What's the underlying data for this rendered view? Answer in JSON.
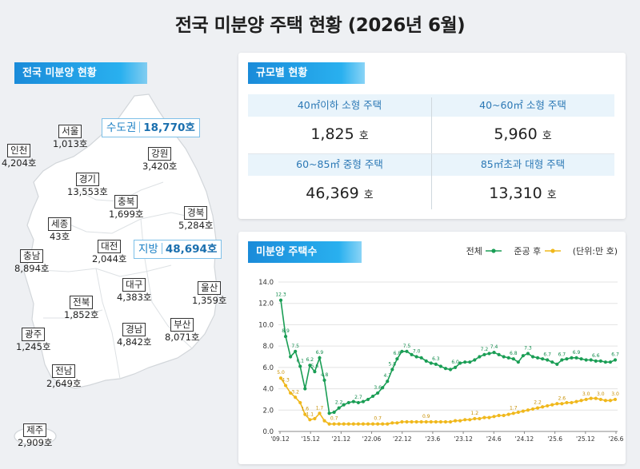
{
  "title": "전국 미분양 주택 현황  (2026년 6월)",
  "map": {
    "tag": "전국 미분양 현황",
    "capital": {
      "label": "수도권",
      "value": "18,770호"
    },
    "local": {
      "label": "지방",
      "value": "48,694호"
    },
    "regions": [
      {
        "name": "서울",
        "value": "1,013호"
      },
      {
        "name": "인천",
        "value": "4,204호"
      },
      {
        "name": "경기",
        "value": "13,553호"
      },
      {
        "name": "강원",
        "value": "3,420호"
      },
      {
        "name": "충북",
        "value": "1,699호"
      },
      {
        "name": "경북",
        "value": "5,284호"
      },
      {
        "name": "세종",
        "value": "43호"
      },
      {
        "name": "충남",
        "value": "8,894호"
      },
      {
        "name": "대전",
        "value": "2,044호"
      },
      {
        "name": "대구",
        "value": "4,383호"
      },
      {
        "name": "울산",
        "value": "1,359호"
      },
      {
        "name": "전북",
        "value": "1,852호"
      },
      {
        "name": "광주",
        "value": "1,245호"
      },
      {
        "name": "경남",
        "value": "4,842호"
      },
      {
        "name": "부산",
        "value": "8,071호"
      },
      {
        "name": "전남",
        "value": "2,649호"
      },
      {
        "name": "제주",
        "value": "2,909호"
      }
    ]
  },
  "scale": {
    "tag": "규모별 현황",
    "unit": "호",
    "cells": [
      {
        "label": "40㎡이하 소형 주택",
        "value": "1,825"
      },
      {
        "label": "40~60㎡ 소형 주택",
        "value": "5,960"
      },
      {
        "label": "60~85㎡ 중형 주택",
        "value": "46,369"
      },
      {
        "label": "85㎡초과 대형 주택",
        "value": "13,310"
      }
    ]
  },
  "chart": {
    "tag": "미분양 주택수",
    "legend_total": "전체",
    "legend_completed": "준공 후",
    "unit_note": "(단위:만 호)",
    "colors": {
      "total": "#1a9e55",
      "completed": "#f0b81c"
    }
  },
  "chart_data": {
    "type": "line",
    "title": "미분양 주택수",
    "unit": "만 호",
    "ylim": [
      0,
      14
    ],
    "yticks": [
      "0.0",
      "2.0",
      "4.0",
      "6.0",
      "8.0",
      "10.0",
      "12.0",
      "14.0"
    ],
    "xticks": [
      "'09.12",
      "'15.12",
      "'21.12",
      "'22.06",
      "'22.12",
      "'23.6",
      "'23.12",
      "'24.6",
      "'24.12",
      "'25.6",
      "'25.12",
      "'26.6"
    ],
    "grid": true,
    "legend": "top-right",
    "series": [
      {
        "name": "전체",
        "values": [
          12.3,
          8.9,
          7.0,
          7.5,
          6.1,
          4.0,
          6.2,
          5.6,
          6.9,
          4.8,
          1.7,
          1.8,
          2.2,
          2.5,
          2.7,
          2.8,
          2.7,
          2.8,
          3.0,
          3.3,
          3.6,
          4.1,
          4.7,
          5.8,
          6.8,
          7.5,
          7.5,
          7.2,
          7.0,
          6.9,
          6.6,
          6.4,
          6.3,
          6.1,
          5.9,
          5.8,
          6.0,
          6.4,
          6.5,
          6.5,
          6.7,
          7.0,
          7.2,
          7.3,
          7.4,
          7.2,
          7.0,
          6.9,
          6.8,
          6.5,
          7.1,
          7.3,
          7.0,
          6.9,
          6.8,
          6.7,
          6.5,
          6.3,
          6.7,
          6.8,
          6.9,
          6.9,
          6.8,
          6.7,
          6.7,
          6.6,
          6.6,
          6.5,
          6.5,
          6.7
        ]
      },
      {
        "name": "준공 후",
        "values": [
          5.0,
          4.3,
          3.6,
          3.2,
          2.7,
          1.6,
          1.1,
          1.2,
          1.7,
          1.0,
          0.7,
          0.7,
          0.7,
          0.7,
          0.7,
          0.7,
          0.7,
          0.7,
          0.7,
          0.7,
          0.7,
          0.7,
          0.7,
          0.8,
          0.8,
          0.9,
          0.9,
          0.9,
          0.9,
          0.9,
          0.9,
          0.9,
          0.9,
          0.9,
          0.9,
          0.9,
          1.0,
          1.0,
          1.1,
          1.1,
          1.2,
          1.2,
          1.3,
          1.3,
          1.4,
          1.5,
          1.5,
          1.6,
          1.7,
          1.8,
          1.9,
          2.0,
          2.1,
          2.2,
          2.3,
          2.4,
          2.5,
          2.6,
          2.6,
          2.7,
          2.7,
          2.8,
          2.9,
          3.0,
          3.1,
          3.1,
          3.0,
          2.9,
          2.9,
          3.0
        ]
      }
    ],
    "data_labels": {
      "전체": [
        [
          0,
          "12.3"
        ],
        [
          1,
          "8.9"
        ],
        [
          3,
          "7.5"
        ],
        [
          4,
          "6.1"
        ],
        [
          6,
          "6.2"
        ],
        [
          7,
          "5.6"
        ],
        [
          8,
          "6.9"
        ],
        [
          9,
          "4.8"
        ],
        [
          12,
          "2.2"
        ],
        [
          16,
          "2.7"
        ],
        [
          20,
          "3.6"
        ],
        [
          22,
          "4.7"
        ],
        [
          23,
          "5.8"
        ],
        [
          24,
          "6.8"
        ],
        [
          26,
          "7.5"
        ],
        [
          28,
          "7.0"
        ],
        [
          32,
          "6.3"
        ],
        [
          36,
          "6.0"
        ],
        [
          42,
          "7.2"
        ],
        [
          44,
          "7.4"
        ],
        [
          48,
          "6.8"
        ],
        [
          51,
          "7.3"
        ],
        [
          55,
          "6.7"
        ],
        [
          58,
          "6.7"
        ],
        [
          61,
          "6.9"
        ],
        [
          65,
          "6.6"
        ],
        [
          69,
          "6.7"
        ]
      ],
      "준공 후": [
        [
          0,
          "5.0"
        ],
        [
          1,
          "4.3"
        ],
        [
          3,
          "3.2"
        ],
        [
          5,
          "1.6"
        ],
        [
          6,
          "1.1"
        ],
        [
          8,
          "1.7"
        ],
        [
          11,
          "0.7"
        ],
        [
          20,
          "0.7"
        ],
        [
          30,
          "0.9"
        ],
        [
          40,
          "1.2"
        ],
        [
          48,
          "1.7"
        ],
        [
          53,
          "2.2"
        ],
        [
          58,
          "2.6"
        ],
        [
          63,
          "3.0"
        ],
        [
          66,
          "3.0"
        ],
        [
          69,
          "3.0"
        ]
      ]
    }
  }
}
